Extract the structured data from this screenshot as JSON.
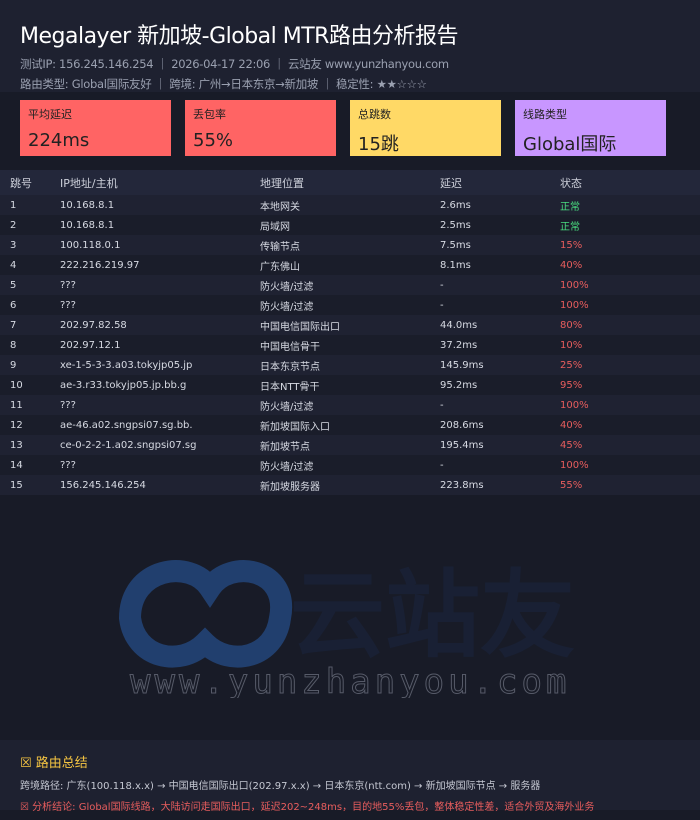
{
  "header": {
    "title": "Megalayer 新加坡-Global MTR路由分析报告",
    "meta1": "测试IP: 156.245.146.254 ｜ 2026-04-17 22:06 ｜ 云站友 www.yunzhanyou.com",
    "meta2": "路由类型: Global国际友好 ｜ 跨境: 广州→日本东京→新加坡 ｜ 稳定性: ★★☆☆☆"
  },
  "cards": [
    {
      "label": "平均延迟",
      "value": "224ms",
      "color": "#ff6464"
    },
    {
      "label": "丢包率",
      "value": "55%",
      "color": "#ff6464"
    },
    {
      "label": "总跳数",
      "value": "15跳",
      "color": "#ffd966"
    },
    {
      "label": "线路类型",
      "value": "Global国际",
      "color": "#c896ff"
    }
  ],
  "table": {
    "headers": [
      "跳号",
      "IP地址/主机",
      "地理位置",
      "延迟",
      "状态"
    ],
    "rows": [
      [
        "1",
        "10.168.8.1",
        "本地网关",
        "2.6ms",
        "正常"
      ],
      [
        "2",
        "10.168.8.1",
        "局域网",
        "2.5ms",
        "正常"
      ],
      [
        "3",
        "100.118.0.1",
        "传输节点",
        "7.5ms",
        "15%"
      ],
      [
        "4",
        "222.216.219.97",
        "广东佛山",
        "8.1ms",
        "40%"
      ],
      [
        "5",
        "???",
        "防火墙/过滤",
        "-",
        "100%"
      ],
      [
        "6",
        "???",
        "防火墙/过滤",
        "-",
        "100%"
      ],
      [
        "7",
        "202.97.82.58",
        "中国电信国际出口",
        "44.0ms",
        "80%"
      ],
      [
        "8",
        "202.97.12.1",
        "中国电信骨干",
        "37.2ms",
        "10%"
      ],
      [
        "9",
        "xe-1-5-3-3.a03.tokyjp05.jp",
        "日本东京节点",
        "145.9ms",
        "25%"
      ],
      [
        "10",
        "ae-3.r33.tokyjp05.jp.bb.g",
        "日本NTT骨干",
        "95.2ms",
        "95%"
      ],
      [
        "11",
        "???",
        "防火墙/过滤",
        "-",
        "100%"
      ],
      [
        "12",
        "ae-46.a02.sngpsi07.sg.bb.",
        "新加坡国际入口",
        "208.6ms",
        "40%"
      ],
      [
        "13",
        "ce-0-2-2-1.a02.sngpsi07.sg",
        "新加坡节点",
        "195.4ms",
        "45%"
      ],
      [
        "14",
        "???",
        "防火墙/过滤",
        "-",
        "100%"
      ],
      [
        "15",
        "156.245.146.254",
        "新加坡服务器",
        "223.8ms",
        "55%"
      ]
    ]
  },
  "watermark": {
    "brand": "云站友",
    "url": "www.yunzhanyou.com"
  },
  "footer": {
    "title": "☒ 路由总结",
    "path": "跨境路径: 广东(100.118.x.x) → 中国电信国际出口(202.97.x.x) → 日本东京(ntt.com) → 新加坡国际节点 → 服务器",
    "conclusion": "☒ 分析结论: Global国际线路，大陆访问走国际出口，延迟202~248ms，目的地55%丢包，整体稳定性差，适合外贸及海外业务"
  }
}
